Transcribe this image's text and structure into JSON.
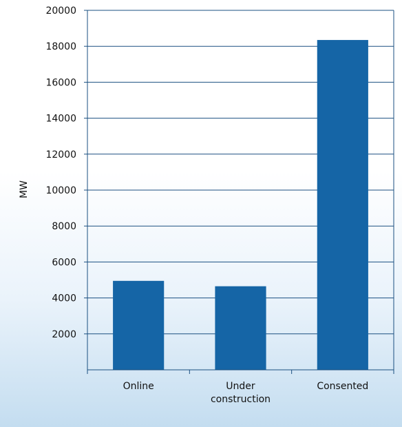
{
  "chart_data": {
    "type": "bar",
    "title": "",
    "xlabel": "",
    "ylabel": "MW",
    "categories": [
      "Online",
      "Under construction",
      "Consented"
    ],
    "category_lines": [
      [
        "Online"
      ],
      [
        "Under",
        "construction"
      ],
      [
        "Consented"
      ]
    ],
    "values": [
      4950,
      4650,
      18350
    ],
    "ylim": [
      0,
      20000
    ],
    "yticks": [
      2000,
      4000,
      6000,
      8000,
      10000,
      12000,
      14000,
      16000,
      18000,
      20000
    ],
    "ytick_labels": [
      "2000",
      "4000",
      "6000",
      "8000",
      "10000",
      "12000",
      "14000",
      "16000",
      "18000",
      "20000"
    ],
    "grid": true,
    "legend": "none",
    "colors": {
      "bar": "#1565a6",
      "grid": "#1a4f80",
      "axis": "#1a4f80",
      "background_bottom": "#c4ddf0"
    }
  }
}
